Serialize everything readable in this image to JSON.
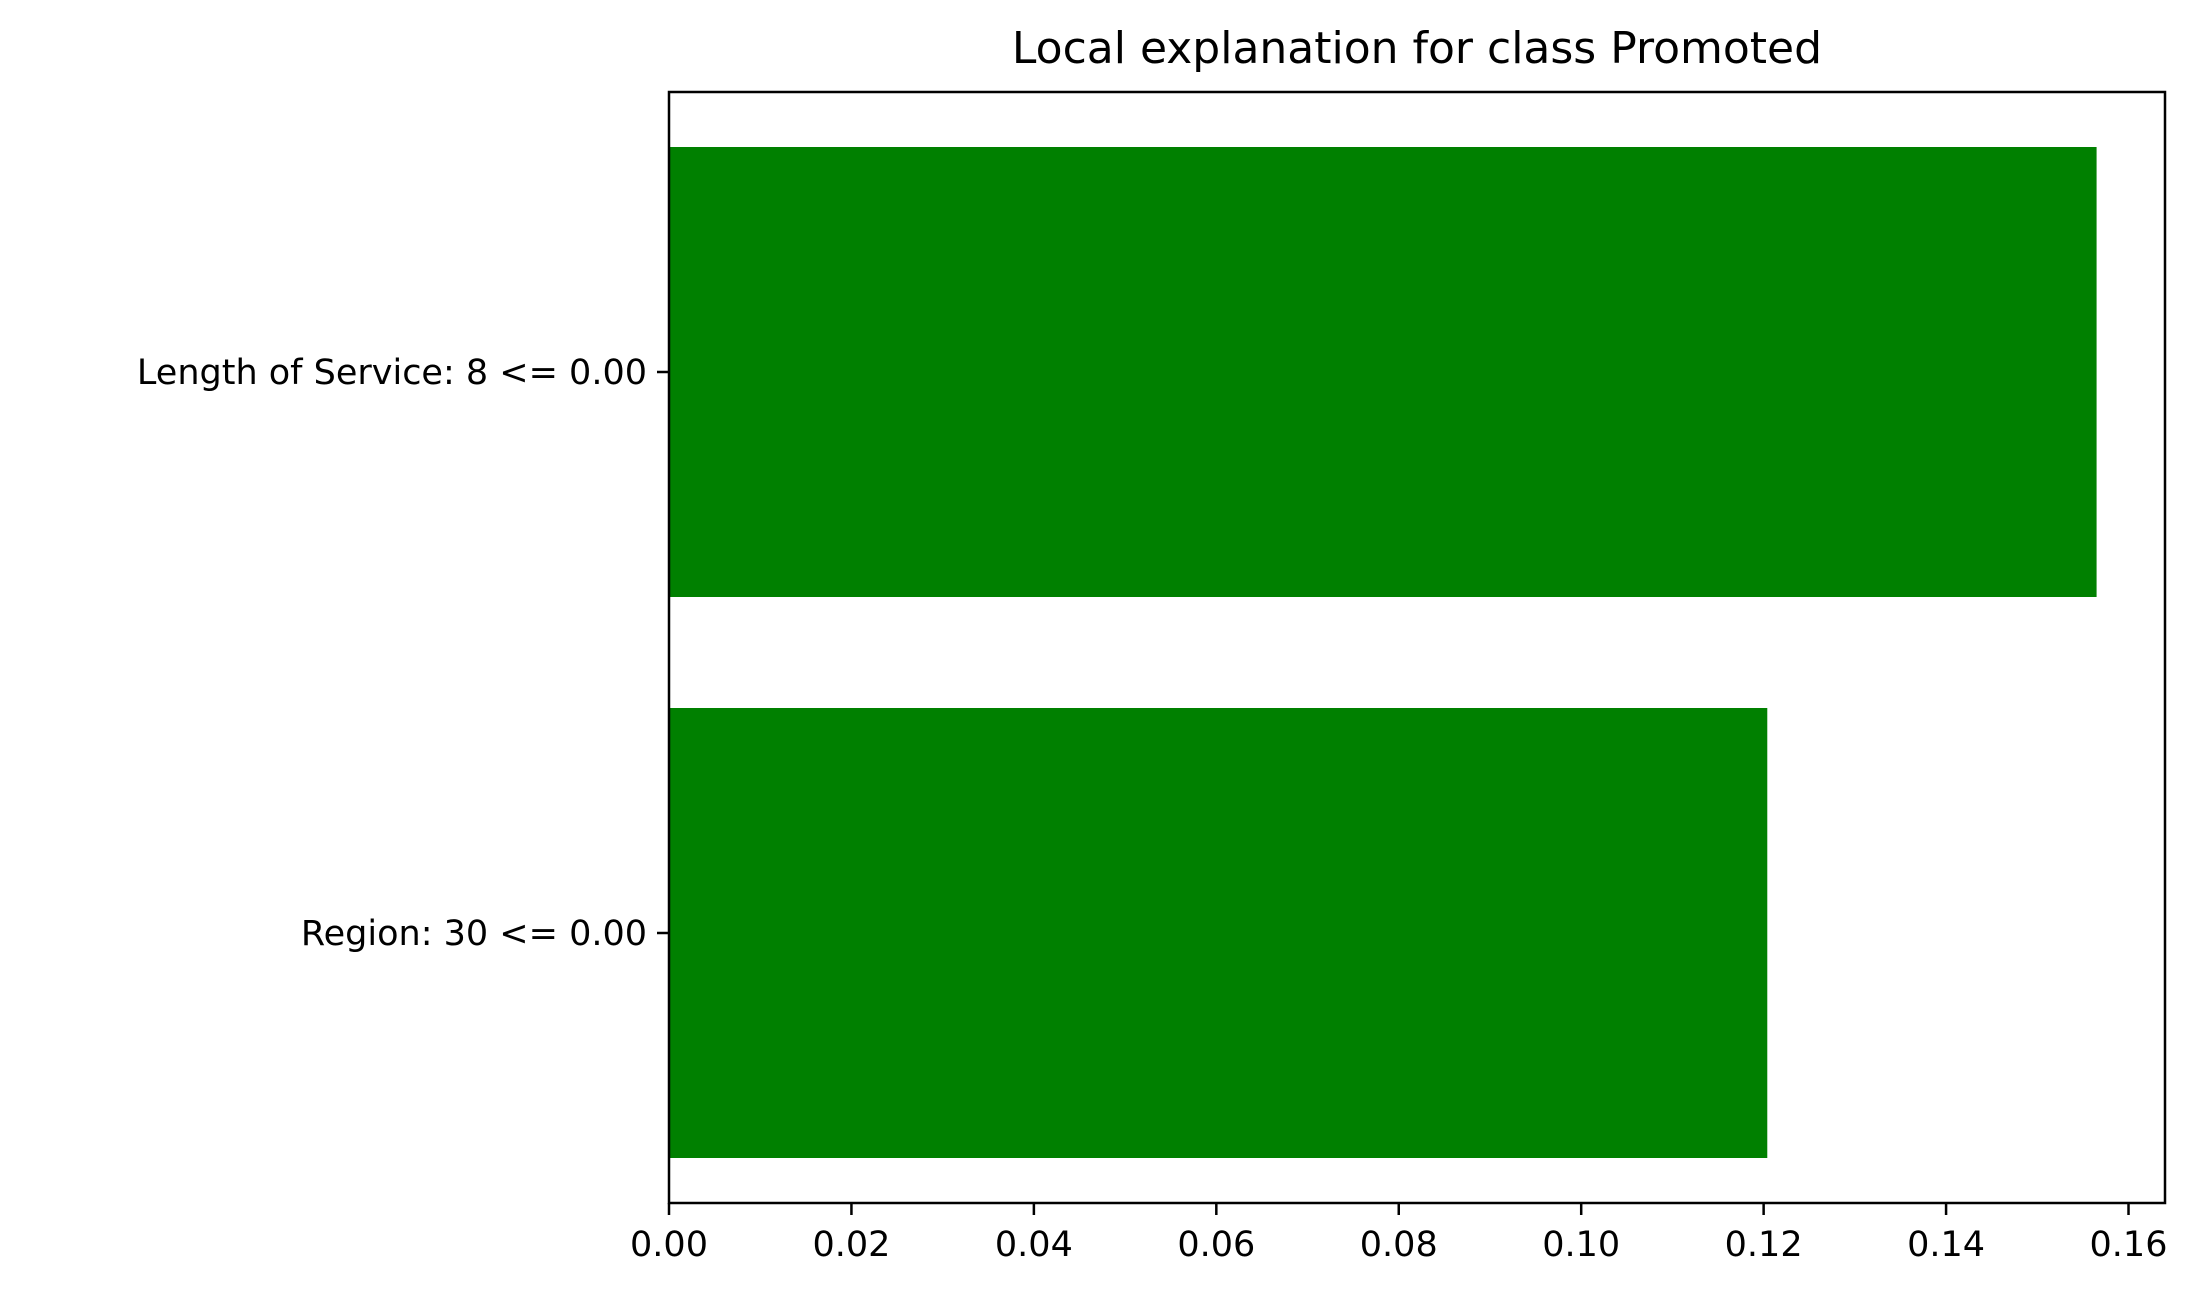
{
  "chart_data": {
    "type": "bar",
    "orientation": "horizontal",
    "title": "Local explanation for class Promoted",
    "xlabel": "",
    "ylabel": "",
    "categories": [
      "Length of Service: 8 <= 0.00",
      "Region: 30 <= 0.00"
    ],
    "values": [
      0.1565,
      0.1204
    ],
    "xlim": [
      0.0,
      0.164
    ],
    "xticks": [
      0.0,
      0.02,
      0.04,
      0.06,
      0.08,
      0.1,
      0.12,
      0.14,
      0.16
    ],
    "xtick_labels": [
      "0.00",
      "0.02",
      "0.04",
      "0.06",
      "0.08",
      "0.10",
      "0.12",
      "0.14",
      "0.16"
    ],
    "bar_color": "#008000",
    "grid": false,
    "legend": "none"
  }
}
